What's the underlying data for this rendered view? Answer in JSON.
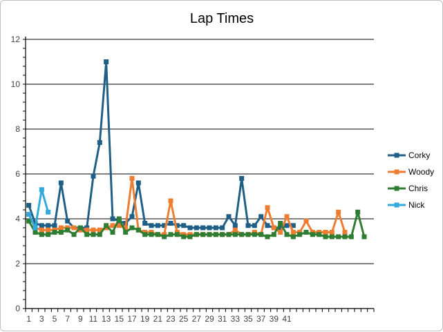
{
  "chart_data": {
    "type": "line",
    "title": "Lap Times",
    "xlabel": "",
    "ylabel": "",
    "ylim": [
      0,
      12
    ],
    "yticks": [
      0,
      2,
      4,
      6,
      8,
      10,
      12
    ],
    "x_tick_labels": [
      1,
      3,
      5,
      7,
      9,
      11,
      13,
      15,
      17,
      19,
      21,
      23,
      25,
      27,
      29,
      31,
      33,
      35,
      37,
      39,
      41
    ],
    "grid": "horizontal major",
    "legend_position": "right",
    "series": [
      {
        "name": "Corky",
        "color": "#1f5f86",
        "values": [
          4.6,
          3.8,
          3.7,
          3.7,
          3.7,
          5.6,
          3.9,
          3.6,
          3.6,
          3.6,
          5.9,
          7.4,
          11.0,
          4.0,
          3.9,
          3.8,
          4.1,
          5.6,
          3.8,
          3.7,
          3.7,
          3.7,
          3.8,
          3.7,
          3.7,
          3.6,
          3.6,
          3.6,
          3.6,
          3.6,
          3.6,
          4.1,
          3.7,
          5.8,
          3.7,
          3.7,
          4.1,
          3.7,
          3.6,
          3.6,
          3.7,
          3.7
        ]
      },
      {
        "name": "Woody",
        "color": "#ed7d31",
        "values": [
          4.2,
          3.6,
          3.5,
          3.5,
          3.5,
          3.6,
          3.6,
          3.6,
          3.5,
          3.5,
          3.5,
          3.5,
          3.6,
          3.7,
          3.7,
          3.6,
          5.8,
          3.5,
          3.4,
          3.4,
          3.3,
          3.3,
          4.8,
          3.4,
          3.3,
          3.3,
          3.3,
          3.3,
          3.3,
          3.3,
          3.3,
          3.3,
          3.5,
          3.3,
          3.3,
          3.4,
          3.3,
          4.5,
          3.6,
          3.4,
          4.1,
          3.4,
          3.4,
          3.9,
          3.4,
          3.4,
          3.4,
          3.4,
          4.3,
          3.4
        ]
      },
      {
        "name": "Chris",
        "color": "#2e7d32",
        "values": [
          3.9,
          3.4,
          3.3,
          3.3,
          3.4,
          3.4,
          3.5,
          3.3,
          3.6,
          3.3,
          3.3,
          3.3,
          3.7,
          3.4,
          4.0,
          3.4,
          3.6,
          3.5,
          3.3,
          3.3,
          3.3,
          3.2,
          3.3,
          3.3,
          3.2,
          3.2,
          3.3,
          3.3,
          3.3,
          3.3,
          3.3,
          3.3,
          3.3,
          3.3,
          3.3,
          3.3,
          3.3,
          3.2,
          3.3,
          3.8,
          3.3,
          3.2,
          3.3,
          3.4,
          3.3,
          3.3,
          3.2,
          3.2,
          3.2,
          3.2,
          3.2,
          4.3,
          3.2
        ]
      },
      {
        "name": "Nick",
        "color": "#33a8dc",
        "values": [
          4.2,
          3.6,
          5.3,
          4.3
        ]
      }
    ]
  }
}
